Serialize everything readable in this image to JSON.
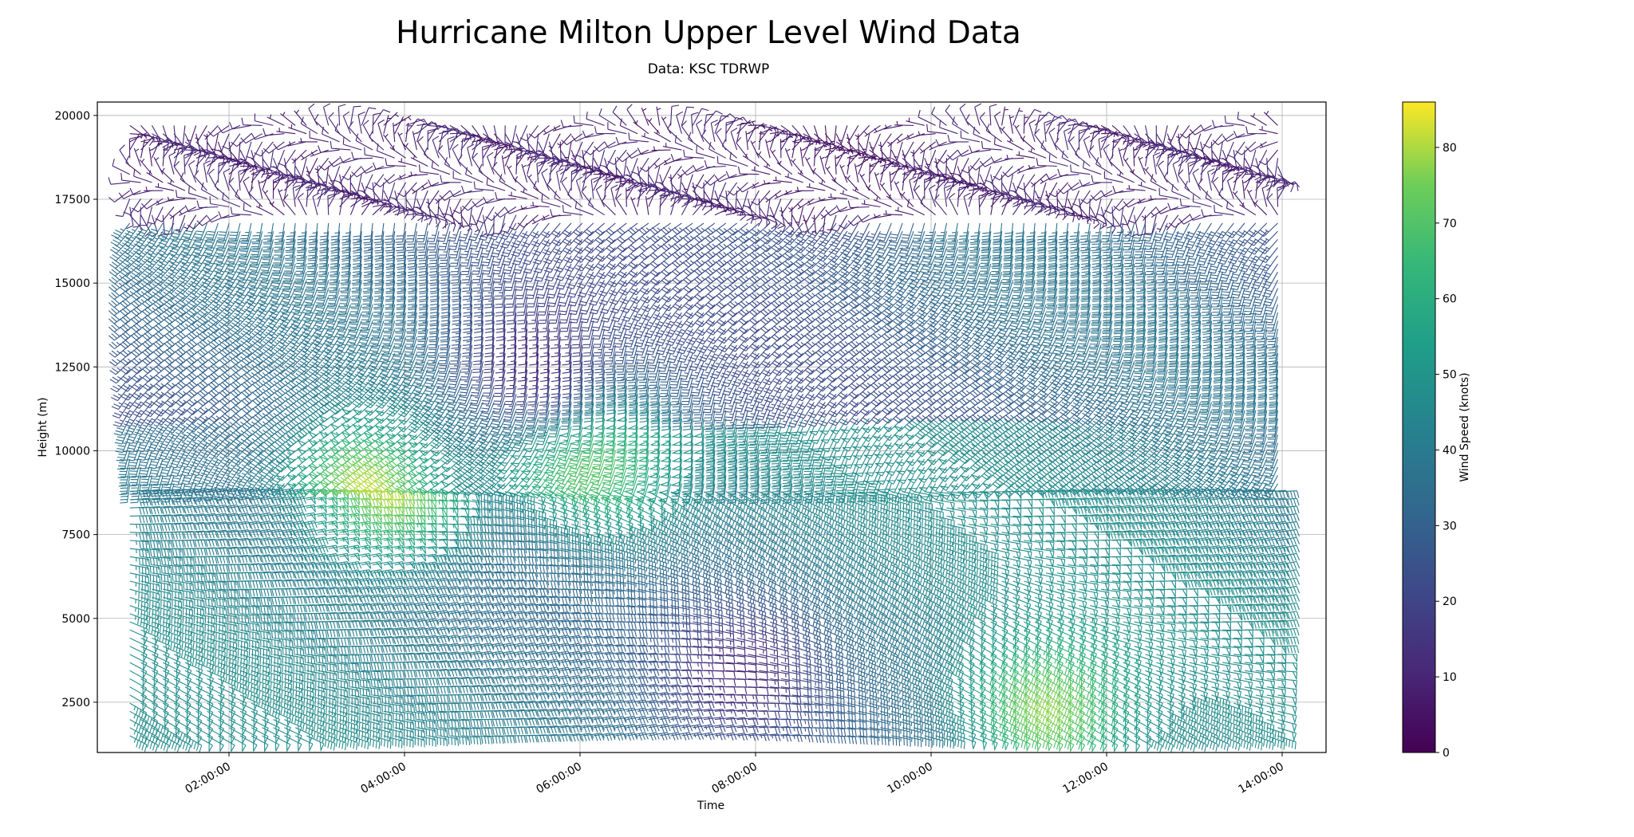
{
  "chart_data": {
    "type": "wind_barbs",
    "title": "Hurricane Milton Upper Level Wind Data",
    "subtitle": "Data: KSC TDRWP",
    "xlabel": "Time",
    "ylabel": "Height (m)",
    "colorbar_label": "Wind Speed (knots)",
    "grid": true,
    "colormap": "viridis",
    "x_ticks": [
      "02:00:00",
      "04:00:00",
      "06:00:00",
      "08:00:00",
      "10:00:00",
      "12:00:00",
      "14:00:00"
    ],
    "x_range_hours": [
      0.5,
      14.5
    ],
    "y_ticks": [
      2500,
      5000,
      7500,
      10000,
      12500,
      15000,
      17500,
      20000
    ],
    "ylim": [
      1000,
      20400
    ],
    "colorbar_ticks": [
      0,
      10,
      20,
      30,
      40,
      50,
      60,
      70,
      80
    ],
    "colorbar_range": [
      0,
      86
    ],
    "data_extent": {
      "time_start_hours": 0.87,
      "time_end_hours": 13.95,
      "height_min_m": 1500,
      "height_max_m": 19700
    },
    "notable_speeds_knots": [
      {
        "time_hours": 3.7,
        "height_m": 9000,
        "speed": 82
      },
      {
        "time_hours": 6.1,
        "height_m": 10000,
        "speed": 76
      },
      {
        "time_hours": 11.2,
        "height_m": 2500,
        "speed": 78
      },
      {
        "time_hours": 7.7,
        "height_m": 3500,
        "speed": 10
      },
      {
        "time_hours": 5.5,
        "height_m": 13000,
        "speed": 12
      },
      {
        "time_hours": 9.0,
        "height_m": 19000,
        "speed": 5
      }
    ]
  }
}
